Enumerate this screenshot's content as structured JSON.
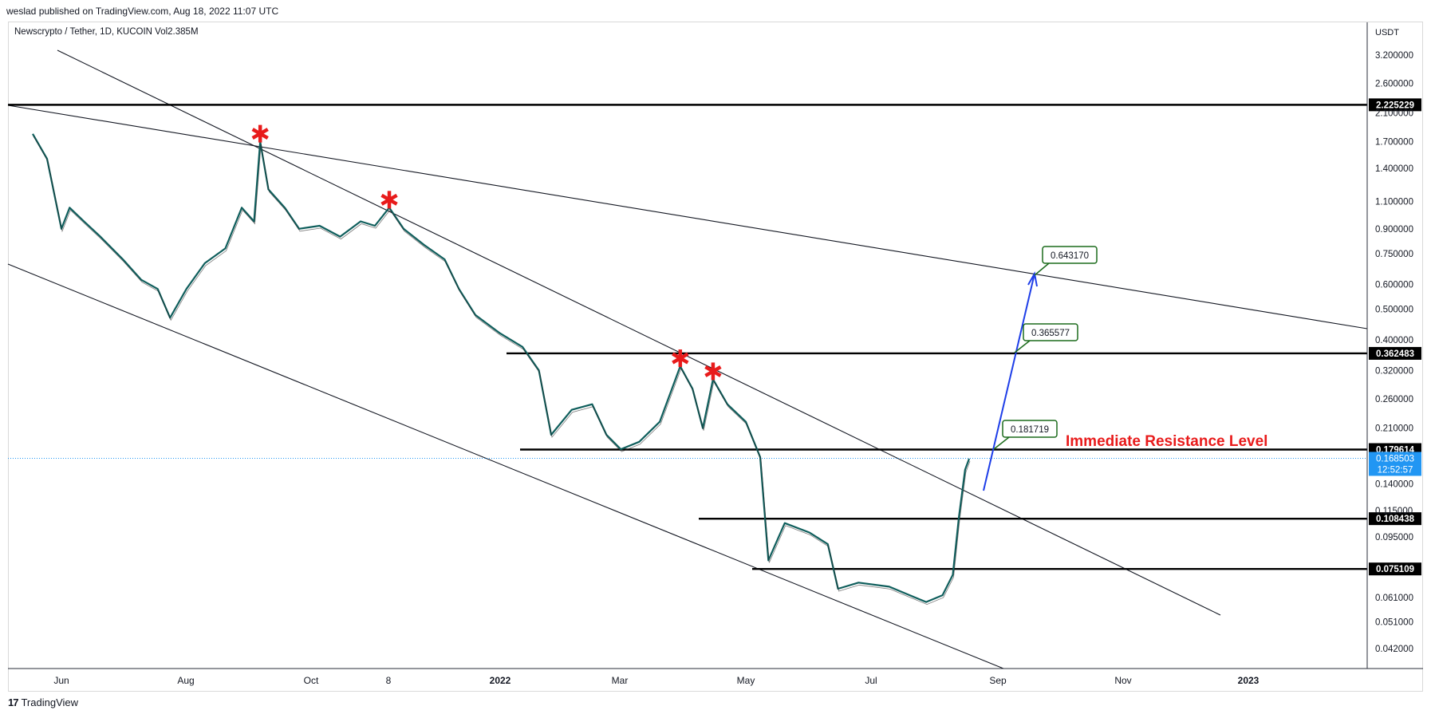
{
  "header": {
    "published": "weslad published on TradingView.com, Aug 18, 2022 11:07 UTC"
  },
  "symbol": {
    "line": "Newscrypto / Tether, 1D, KUCOIN  Vol2.385M"
  },
  "brand": {
    "logo_text": "17",
    "name": "TradingView"
  },
  "colors": {
    "resistance_text": "#e81b1b",
    "arrow": "#1e3ee8",
    "label_border": "#1c6b1c",
    "last_price": "#2196f3",
    "star": "#e81b1b"
  },
  "chart_data": {
    "type": "line",
    "scale": "log",
    "currency_label": "USDT",
    "x_ticks": [
      "Jun",
      "Aug",
      "Oct",
      "8",
      "2022",
      "Mar",
      "May",
      "Jul",
      "Sep",
      "Nov",
      "2023"
    ],
    "y_ticks": [
      3.2,
      2.6,
      2.1,
      1.7,
      1.4,
      1.1,
      0.9,
      0.75,
      0.6,
      0.5,
      0.4,
      0.32,
      0.26,
      0.21,
      0.14,
      0.115,
      0.095,
      0.061,
      0.051,
      0.042
    ],
    "y_tick_labels": [
      "3.200000",
      "2.600000",
      "2.100000",
      "1.700000",
      "1.400000",
      "1.100000",
      "0.900000",
      "0.750000",
      "0.600000",
      "0.500000",
      "0.400000",
      "0.320000",
      "0.260000",
      "0.210000",
      "0.140000",
      "0.115000",
      "0.095000",
      "0.061000",
      "0.051000",
      "0.042000"
    ],
    "horizontal_levels": [
      {
        "value": 2.225229,
        "label": "2.225229"
      },
      {
        "value": 0.362483,
        "label": "0.362483"
      },
      {
        "value": 0.179614,
        "label": "0.179614"
      },
      {
        "value": 0.108438,
        "label": "0.108438"
      },
      {
        "value": 0.075109,
        "label": "0.075109"
      }
    ],
    "last_price": {
      "value": 0.168503,
      "label": "0.168503",
      "countdown": "12:52:57"
    },
    "annotation": "Immediate Resistance Level",
    "targets": [
      {
        "value": 0.181719,
        "label": "0.181719"
      },
      {
        "value": 0.365577,
        "label": "0.365577"
      },
      {
        "value": 0.64317,
        "label": "0.643170"
      }
    ],
    "price_path": [
      [
        "May 18 2021",
        1.8
      ],
      [
        "May 25 2021",
        1.5
      ],
      [
        "Jun 1 2021",
        0.9
      ],
      [
        "Jun 5 2021",
        1.05
      ],
      [
        "Jun 12 2021",
        0.95
      ],
      [
        "Jun 20 2021",
        0.85
      ],
      [
        "Jul 1 2021",
        0.72
      ],
      [
        "Jul 10 2021",
        0.62
      ],
      [
        "Jul 18 2021",
        0.58
      ],
      [
        "Jul 24 2021",
        0.47
      ],
      [
        "Aug 1 2021",
        0.58
      ],
      [
        "Aug 10 2021",
        0.7
      ],
      [
        "Aug 20 2021",
        0.78
      ],
      [
        "Aug 28 2021",
        1.05
      ],
      [
        "Sep 3 2021",
        0.95
      ],
      [
        "Sep 6 2021",
        1.7
      ],
      [
        "Sep 10 2021",
        1.2
      ],
      [
        "Sep 18 2021",
        1.05
      ],
      [
        "Sep 25 2021",
        0.9
      ],
      [
        "Oct 5 2021",
        0.92
      ],
      [
        "Oct 15 2021",
        0.85
      ],
      [
        "Oct 25 2021",
        0.95
      ],
      [
        "Nov 1 2021",
        0.92
      ],
      [
        "Nov 8 2021",
        1.05
      ],
      [
        "Nov 15 2021",
        0.9
      ],
      [
        "Nov 25 2021",
        0.8
      ],
      [
        "Dec 5 2021",
        0.72
      ],
      [
        "Dec 12 2021",
        0.58
      ],
      [
        "Dec 20 2021",
        0.48
      ],
      [
        "Jan 1 2022",
        0.42
      ],
      [
        "Jan 12 2022",
        0.38
      ],
      [
        "Jan 20 2022",
        0.32
      ],
      [
        "Jan 26 2022",
        0.2
      ],
      [
        "Feb 5 2022",
        0.24
      ],
      [
        "Feb 15 2022",
        0.25
      ],
      [
        "Feb 22 2022",
        0.2
      ],
      [
        "Mar 1 2022",
        0.18
      ],
      [
        "Mar 10 2022",
        0.19
      ],
      [
        "Mar 20 2022",
        0.22
      ],
      [
        "Mar 30 2022",
        0.33
      ],
      [
        "Apr 5 2022",
        0.28
      ],
      [
        "Apr 10 2022",
        0.21
      ],
      [
        "Apr 15 2022",
        0.3
      ],
      [
        "Apr 22 2022",
        0.25
      ],
      [
        "May 1 2022",
        0.22
      ],
      [
        "May 8 2022",
        0.17
      ],
      [
        "May 12 2022",
        0.08
      ],
      [
        "May 20 2022",
        0.105
      ],
      [
        "Jun 1 2022",
        0.098
      ],
      [
        "Jun 10 2022",
        0.09
      ],
      [
        "Jun 15 2022",
        0.065
      ],
      [
        "Jun 25 2022",
        0.068
      ],
      [
        "Jul 10 2022",
        0.066
      ],
      [
        "Jul 20 2022",
        0.062
      ],
      [
        "Jul 28 2022",
        0.059
      ],
      [
        "Aug 5 2022",
        0.062
      ],
      [
        "Aug 10 2022",
        0.072
      ],
      [
        "Aug 13 2022",
        0.11
      ],
      [
        "Aug 16 2022",
        0.155
      ],
      [
        "Aug 18 2022",
        0.168
      ]
    ],
    "star_dates": [
      "Sep 6 2021",
      "Nov 8 2021",
      "Mar 30 2022",
      "Apr 15 2022"
    ]
  }
}
